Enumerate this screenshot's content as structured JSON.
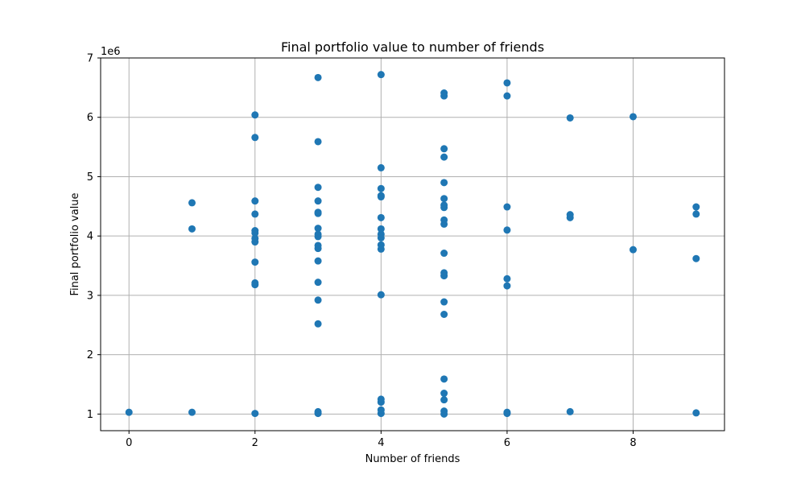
{
  "chart_data": {
    "type": "scatter",
    "title": "Final portfolio value to number of friends",
    "xlabel": "Number of friends",
    "ylabel": "Final portfolio value",
    "y_offset_label": "1e6",
    "xlim": [
      -0.45,
      9.45
    ],
    "ylim": [
      0.72,
      7.0
    ],
    "xticks": [
      0,
      2,
      4,
      6,
      8
    ],
    "yticks": [
      1,
      2,
      3,
      4,
      5,
      6,
      7
    ],
    "grid": true,
    "marker_color": "#1f77b4",
    "series": [
      {
        "points": [
          [
            0,
            1.03
          ],
          [
            1,
            1.03
          ],
          [
            1,
            4.12
          ],
          [
            1,
            4.56
          ],
          [
            2,
            1.01
          ],
          [
            2,
            3.18
          ],
          [
            2,
            3.21
          ],
          [
            2,
            3.56
          ],
          [
            2,
            3.9
          ],
          [
            2,
            3.96
          ],
          [
            2,
            4.05
          ],
          [
            2,
            4.09
          ],
          [
            2,
            4.37
          ],
          [
            2,
            4.59
          ],
          [
            2,
            5.66
          ],
          [
            2,
            6.04
          ],
          [
            3,
            1.01
          ],
          [
            3,
            1.04
          ],
          [
            3,
            2.52
          ],
          [
            3,
            2.92
          ],
          [
            3,
            3.22
          ],
          [
            3,
            3.58
          ],
          [
            3,
            3.79
          ],
          [
            3,
            3.84
          ],
          [
            3,
            3.99
          ],
          [
            3,
            4.03
          ],
          [
            3,
            4.13
          ],
          [
            3,
            4.38
          ],
          [
            3,
            4.4
          ],
          [
            3,
            4.59
          ],
          [
            3,
            4.82
          ],
          [
            3,
            5.59
          ],
          [
            3,
            6.67
          ],
          [
            4,
            1.01
          ],
          [
            4,
            1.07
          ],
          [
            4,
            1.2
          ],
          [
            4,
            1.25
          ],
          [
            4,
            3.01
          ],
          [
            4,
            3.78
          ],
          [
            4,
            3.85
          ],
          [
            4,
            3.97
          ],
          [
            4,
            4.03
          ],
          [
            4,
            4.12
          ],
          [
            4,
            4.31
          ],
          [
            4,
            4.66
          ],
          [
            4,
            4.68
          ],
          [
            4,
            4.8
          ],
          [
            4,
            5.15
          ],
          [
            4,
            6.72
          ],
          [
            5,
            1.0
          ],
          [
            5,
            1.05
          ],
          [
            5,
            1.24
          ],
          [
            5,
            1.35
          ],
          [
            5,
            1.59
          ],
          [
            5,
            2.68
          ],
          [
            5,
            2.89
          ],
          [
            5,
            3.33
          ],
          [
            5,
            3.38
          ],
          [
            5,
            3.71
          ],
          [
            5,
            4.2
          ],
          [
            5,
            4.27
          ],
          [
            5,
            4.48
          ],
          [
            5,
            4.52
          ],
          [
            5,
            4.63
          ],
          [
            5,
            4.9
          ],
          [
            5,
            5.33
          ],
          [
            5,
            5.47
          ],
          [
            5,
            6.36
          ],
          [
            5,
            6.41
          ],
          [
            6,
            1.01
          ],
          [
            6,
            1.03
          ],
          [
            6,
            3.16
          ],
          [
            6,
            3.28
          ],
          [
            6,
            4.1
          ],
          [
            6,
            4.49
          ],
          [
            6,
            6.36
          ],
          [
            6,
            6.58
          ],
          [
            7,
            1.04
          ],
          [
            7,
            4.31
          ],
          [
            7,
            4.36
          ],
          [
            7,
            5.99
          ],
          [
            8,
            3.77
          ],
          [
            8,
            6.01
          ],
          [
            9,
            1.02
          ],
          [
            9,
            3.62
          ],
          [
            9,
            4.37
          ],
          [
            9,
            4.49
          ]
        ]
      }
    ]
  }
}
